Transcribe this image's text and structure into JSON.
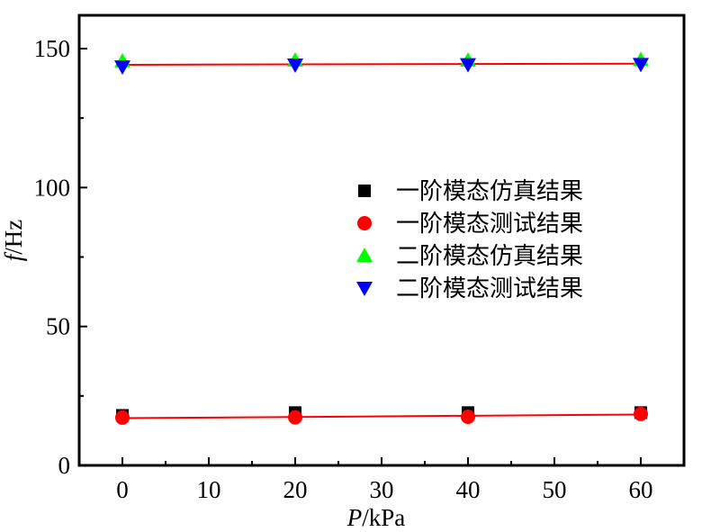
{
  "chart_data": {
    "type": "scatter",
    "xlabel": {
      "italic": "P",
      "rest": "/kPa"
    },
    "ylabel": {
      "italic": "f",
      "rest": "/Hz"
    },
    "xlim": [
      -5,
      65
    ],
    "ylim": [
      0,
      162
    ],
    "x_ticks": [
      0,
      10,
      20,
      30,
      40,
      50,
      60
    ],
    "y_ticks": [
      0,
      50,
      100,
      150
    ],
    "x_tick_labels": [
      "0",
      "10",
      "20",
      "30",
      "40",
      "50",
      "60"
    ],
    "y_tick_labels": [
      "0",
      "50",
      "100",
      "150"
    ],
    "legend_position": "center-right",
    "grid": false,
    "series": [
      {
        "name": "一阶模态仿真结果",
        "marker": "square",
        "color": "#000000",
        "x": [
          0,
          20,
          40,
          60
        ],
        "y": [
          18,
          19,
          19,
          19
        ]
      },
      {
        "name": "一阶模态测试结果",
        "marker": "circle",
        "color": "#ff0000",
        "x": [
          0,
          20,
          40,
          60
        ],
        "y": [
          17.2,
          17.3,
          17.5,
          18.5
        ]
      },
      {
        "name": "二阶模态仿真结果",
        "marker": "triangle-up",
        "color": "#00ff00",
        "x": [
          0,
          20,
          40,
          60
        ],
        "y": [
          145.5,
          145.8,
          145.8,
          146.0
        ]
      },
      {
        "name": "二阶模态测试结果",
        "marker": "triangle-down",
        "color": "#0000ff",
        "x": [
          0,
          20,
          40,
          60
        ],
        "y": [
          143.5,
          144.2,
          144.3,
          144.4
        ]
      }
    ],
    "fit_lines": [
      {
        "color": "#ff0000",
        "x": [
          0,
          60
        ],
        "y": [
          17.0,
          18.3
        ]
      },
      {
        "color": "#ff0000",
        "x": [
          0,
          60
        ],
        "y": [
          144.2,
          144.6
        ]
      }
    ]
  }
}
